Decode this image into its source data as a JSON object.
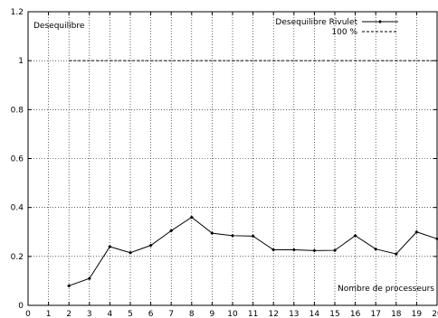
{
  "chart_data": {
    "type": "line",
    "title": "",
    "xlabel": "Nombre de processeurs",
    "ylabel": "Desequilibre",
    "xlim": [
      0,
      20
    ],
    "ylim": [
      0,
      1.2
    ],
    "xticks": [
      0,
      1,
      2,
      3,
      4,
      5,
      6,
      7,
      8,
      9,
      10,
      11,
      12,
      13,
      14,
      15,
      16,
      17,
      18,
      19,
      20
    ],
    "yticks": [
      0,
      0.2,
      0.4,
      0.6,
      0.8,
      1,
      1.2
    ],
    "ytick_labels": [
      "0",
      "0.2",
      "0.4",
      "0.6",
      "0.8",
      "1",
      "1.2"
    ],
    "grid": true,
    "legend_position": "top-right",
    "series": [
      {
        "name": "Desequilibre Rivulet",
        "style": "solid-with-markers",
        "color": "#000000",
        "x": [
          2,
          3,
          4,
          5,
          6,
          7,
          8,
          9,
          10,
          11,
          12,
          13,
          14,
          15,
          16,
          17,
          18,
          19,
          20
        ],
        "y": [
          0.08,
          0.11,
          0.24,
          0.215,
          0.245,
          0.305,
          0.36,
          0.295,
          0.285,
          0.283,
          0.227,
          0.227,
          0.224,
          0.225,
          0.285,
          0.23,
          0.21,
          0.3,
          0.272
        ]
      },
      {
        "name": "100 %",
        "style": "dashed",
        "color": "#000000",
        "x": [
          2,
          20
        ],
        "y": [
          1,
          1
        ]
      }
    ]
  }
}
